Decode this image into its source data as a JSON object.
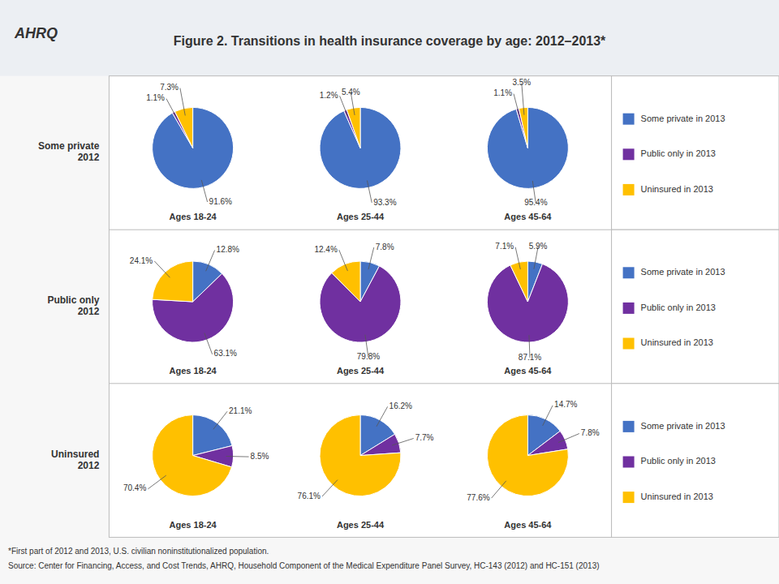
{
  "chart_data": {
    "type": "pie",
    "title": "Figure 2. Transitions in health insurance coverage by age: 2012–2013*",
    "annotations": [
      "AHRQ"
    ],
    "footnotes": [
      "*First part of 2012 and 2013, U.S. civilian noninstitutionalized population.",
      "Source: Center for Financing, Access, and Cost Trends, AHRQ, Household Component of the Medical Expenditure Panel Survey, HC-143 (2012) and HC-151 (2013)"
    ],
    "row_labels": [
      "Some private\n2012",
      "Public only\n2012",
      "Uninsured\n2012"
    ],
    "col_labels": [
      "Ages 18-24",
      "Ages 25-44",
      "Ages 45-64"
    ],
    "categories": [
      "Some private in 2013",
      "Public only in 2013",
      "Uninsured in 2013"
    ],
    "colors": [
      "#4472C4",
      "#7030A0",
      "#FFC000"
    ],
    "legend": "right",
    "data_labels": true,
    "values": [
      [
        [
          91.6,
          1.1,
          7.3
        ],
        [
          93.3,
          1.2,
          5.4
        ],
        [
          95.4,
          1.1,
          3.5
        ]
      ],
      [
        [
          12.8,
          63.1,
          24.1
        ],
        [
          7.8,
          79.8,
          12.4
        ],
        [
          5.9,
          87.1,
          7.1
        ]
      ],
      [
        [
          21.1,
          8.5,
          70.4
        ],
        [
          16.2,
          7.7,
          76.1
        ],
        [
          14.7,
          7.8,
          77.6
        ]
      ]
    ],
    "value_labels": [
      [
        [
          "91.6%",
          "1.1%",
          "7.3%"
        ],
        [
          "93.3%",
          "1.2%",
          "5.4%"
        ],
        [
          "95.4%",
          "1.1%",
          "3.5%"
        ]
      ],
      [
        [
          "12.8%",
          "63.1%",
          "24.1%"
        ],
        [
          "7.8%",
          "79.8%",
          "12.4%"
        ],
        [
          "5.9%",
          "87.1%",
          "7.1%"
        ]
      ],
      [
        [
          "21.1%",
          "8.5%",
          "70.4%"
        ],
        [
          "16.2%",
          "7.7%",
          "76.1%"
        ],
        [
          "14.7%",
          "7.8%",
          "77.6%"
        ]
      ]
    ]
  }
}
